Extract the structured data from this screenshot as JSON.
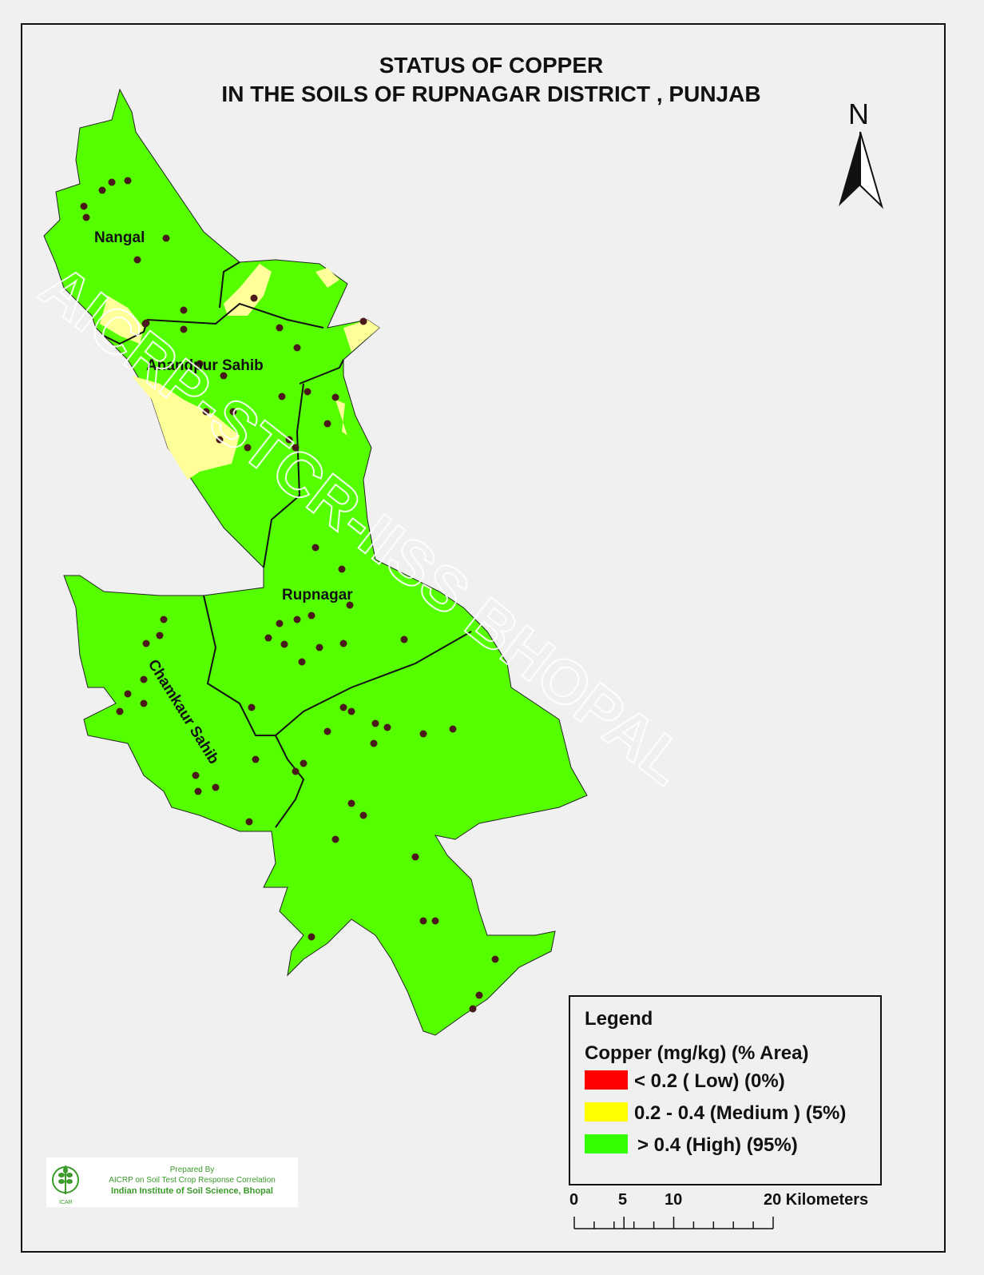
{
  "title": {
    "line1": "STATUS OF   COPPER",
    "line2": "IN THE SOILS OF RUPNAGAR  DISTRICT , PUNJAB"
  },
  "north_arrow": {
    "label": "N",
    "icon": "north-arrow-icon"
  },
  "regions": [
    {
      "name": "Nangal"
    },
    {
      "name": "Anandpur Sahib"
    },
    {
      "name": "Rupnagar"
    },
    {
      "name": "Chamkaur Sahib"
    }
  ],
  "watermark": "AICRP-STCR-IISS BHOPAL",
  "legend": {
    "title": "Legend",
    "subtitle": "Copper  (mg/kg) (% Area)",
    "items": [
      {
        "label": "< 0.2 ( Low) (0%)",
        "color": "#ff0000",
        "percent": 0
      },
      {
        "label": "0.2 - 0.4 (Medium ) (5%)",
        "color": "#ffff00",
        "percent": 5
      },
      {
        "label": "> 0.4 (High) (95%)",
        "color": "#33ff00",
        "percent": 95
      }
    ]
  },
  "scale_bar": {
    "ticks": [
      "0",
      "5",
      "10",
      "20 Kilometers"
    ]
  },
  "colors": {
    "high": "#55ff00",
    "medium": "#ffff99",
    "sample_point": "#4a1a1a"
  },
  "credit": {
    "prepared_by": "Prepared By",
    "line1": "AICRP on Soil Test Crop Response Correlation",
    "line2": "Indian Institute of Soil Science, Bhopal",
    "logo_text": "ICAR"
  }
}
